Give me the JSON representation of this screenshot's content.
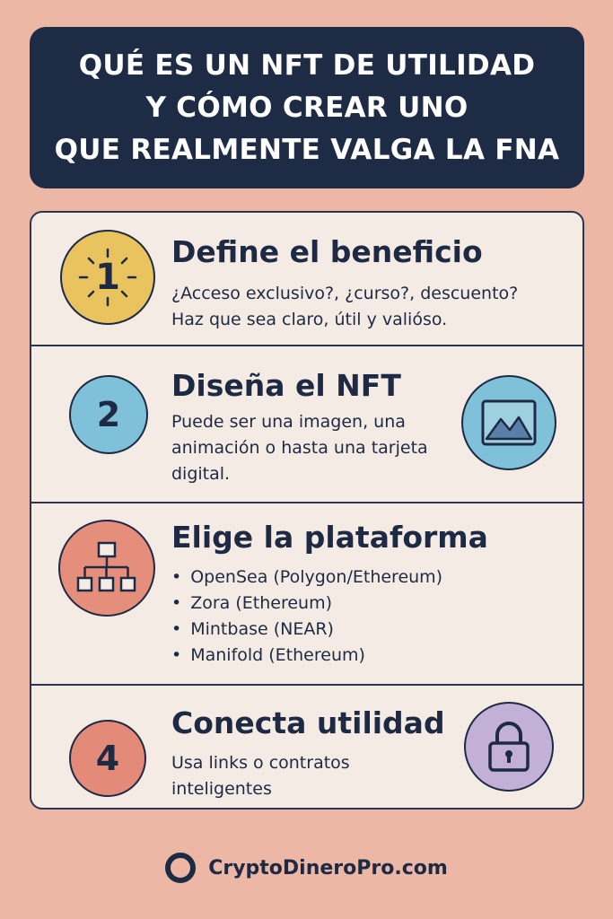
{
  "title": {
    "lines": [
      "QUÉ ES UN NFT DE UTILIDAD",
      "Y CÓMO CREAR UNO",
      "QUE REALMENTE VALGA LA FNA"
    ]
  },
  "steps": [
    {
      "number": "1",
      "title": "Define el beneficio",
      "desc_lines": [
        "¿Acceso exclusivo?, ¿curso?, descuento?",
        "Haz que sea claro, útil y valióso."
      ],
      "color": "#E8C35E"
    },
    {
      "number": "2",
      "title": "Diseña el NFT",
      "desc": "Puede ser una imagen, una animación o hasta una tarjeta digital.",
      "color": "#7FC1D9",
      "side_icon": "image-icon"
    },
    {
      "title": "Elige la plataforma",
      "bullets": [
        "OpenSea (Polygon/Ethereum)",
        "Zora (Ethereum)",
        "Mintbase (NEAR)",
        "Manifold (Ethereum)"
      ],
      "color": "#E58E7C",
      "icon": "hierarchy-icon"
    },
    {
      "number": "4",
      "title": "Conecta utilidad",
      "desc": "Usa links o contratos inteligentes",
      "color": "#E38A78",
      "side_icon": "lock-icon"
    }
  ],
  "footer": {
    "brand": "CryptoDineroPro.com"
  }
}
